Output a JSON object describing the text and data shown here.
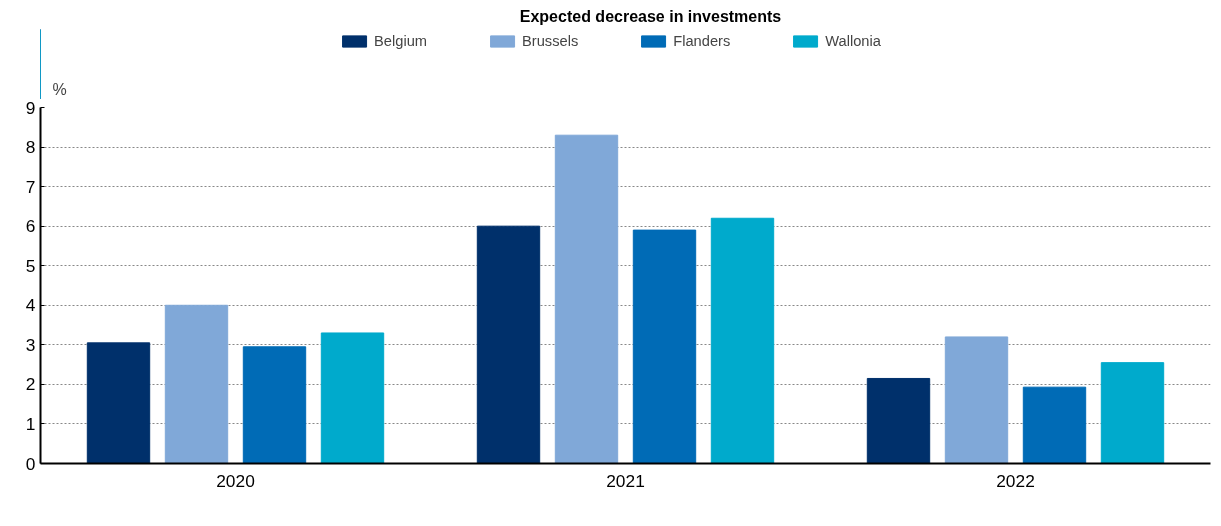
{
  "chart_data": {
    "type": "bar",
    "title": "Expected decrease in investments",
    "ylabel": "%",
    "categories": [
      "2020",
      "2021",
      "2022"
    ],
    "series": [
      {
        "name": "Belgium",
        "color": "#00306b",
        "values": [
          3.05,
          6.0,
          2.15
        ]
      },
      {
        "name": "Brussels",
        "color": "#80a8d8",
        "values": [
          4.0,
          8.3,
          3.2
        ]
      },
      {
        "name": "Flanders",
        "color": "#006bb6",
        "values": [
          2.95,
          5.9,
          1.93
        ]
      },
      {
        "name": "Wallonia",
        "color": "#00aacc",
        "values": [
          3.3,
          6.2,
          2.55
        ]
      }
    ],
    "ylim": [
      0,
      9
    ],
    "yticks": [
      0,
      1,
      2,
      3,
      4,
      5,
      6,
      7,
      8,
      9
    ],
    "grid": "y",
    "legend": "top"
  }
}
